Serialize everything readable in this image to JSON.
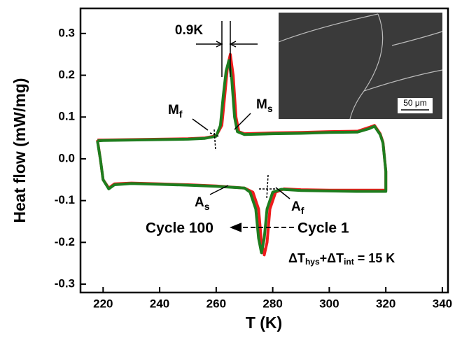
{
  "chart_data": {
    "type": "line",
    "x_label": "T (K)",
    "y_label": "Heat flow (mW/mg)",
    "xlim": [
      212,
      342
    ],
    "ylim": [
      -0.32,
      0.36
    ],
    "xticks": [
      220,
      240,
      260,
      280,
      300,
      320,
      340
    ],
    "yticks": [
      -0.3,
      -0.2,
      -0.1,
      {
        "value": 0,
        "label": "0.0"
      },
      0.1,
      0.2,
      0.3
    ],
    "series": [
      {
        "name": "Cycle 1",
        "color": "#ee1c1c",
        "x": [
          218,
          220,
          230,
          240,
          250,
          256,
          260,
          262,
          263,
          264,
          265,
          266,
          267,
          268,
          270,
          280,
          290,
          300,
          310,
          314,
          316,
          318,
          319,
          320,
          320,
          310,
          300,
          290,
          284,
          281,
          279,
          278,
          277,
          276,
          275,
          273,
          270,
          260,
          250,
          240,
          230,
          224,
          222,
          220,
          219,
          218
        ],
        "values": [
          0.045,
          0.045,
          0.046,
          0.047,
          0.048,
          0.05,
          0.055,
          0.08,
          0.15,
          0.22,
          0.25,
          0.2,
          0.1,
          0.065,
          0.06,
          0.062,
          0.063,
          0.065,
          0.066,
          0.075,
          0.08,
          0.06,
          0.04,
          -0.03,
          -0.075,
          -0.075,
          -0.075,
          -0.074,
          -0.072,
          -0.08,
          -0.12,
          -0.2,
          -0.23,
          -0.2,
          -0.12,
          -0.08,
          -0.07,
          -0.065,
          -0.062,
          -0.06,
          -0.058,
          -0.06,
          -0.07,
          -0.05,
          0.0,
          0.045
        ]
      },
      {
        "name": "Cycle 100",
        "color": "#1e7d1e",
        "x": [
          218,
          220,
          230,
          240,
          250,
          256,
          260,
          261.5,
          262.5,
          263.5,
          264.5,
          265.5,
          266.5,
          267.5,
          270,
          280,
          290,
          300,
          310,
          314,
          316,
          318,
          319,
          320,
          320,
          310,
          300,
          290,
          283,
          280,
          278,
          277,
          276,
          275,
          274,
          272,
          270,
          260,
          250,
          240,
          230,
          224,
          222,
          220,
          219,
          218
        ],
        "values": [
          0.043,
          0.044,
          0.045,
          0.046,
          0.047,
          0.049,
          0.054,
          0.08,
          0.15,
          0.21,
          0.235,
          0.19,
          0.1,
          0.065,
          0.058,
          0.06,
          0.061,
          0.063,
          0.064,
          0.072,
          0.078,
          0.058,
          0.038,
          -0.03,
          -0.078,
          -0.078,
          -0.077,
          -0.076,
          -0.073,
          -0.08,
          -0.12,
          -0.19,
          -0.225,
          -0.19,
          -0.12,
          -0.08,
          -0.07,
          -0.066,
          -0.063,
          -0.061,
          -0.059,
          -0.062,
          -0.072,
          -0.05,
          0.0,
          0.043
        ]
      }
    ],
    "annotations": {
      "peak_width": "0.9K",
      "mf": [
        "M",
        "f"
      ],
      "ms": [
        "M",
        "s"
      ],
      "as": [
        "A",
        "s"
      ],
      "af": [
        "A",
        "f"
      ],
      "hysteresis": [
        "ΔT",
        "hys",
        "+ΔT",
        "int",
        " = 15 K"
      ]
    },
    "inset_scale": "50 μm"
  }
}
